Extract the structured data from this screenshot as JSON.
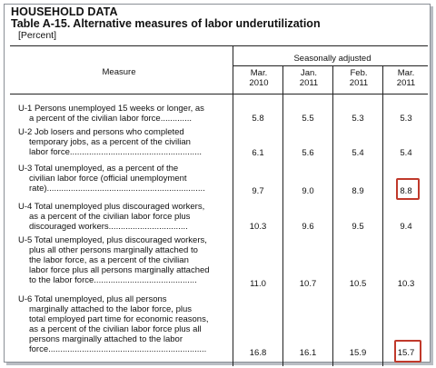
{
  "header": {
    "category": "HOUSEHOLD DATA",
    "title": "Table A-15. Alternative measures of labor underutilization",
    "unit": "[Percent]"
  },
  "table": {
    "group_header": "Seasonally adjusted",
    "measure_header": "Measure",
    "columns": [
      {
        "month": "Mar.",
        "year": "2010"
      },
      {
        "month": "Jan.",
        "year": "2011"
      },
      {
        "month": "Feb.",
        "year": "2011"
      },
      {
        "month": "Mar.",
        "year": "2011"
      }
    ],
    "rows": [
      {
        "lines": [
          "U-1 Persons unemployed 15 weeks or longer, as",
          "a percent of the civilian labor force............."
        ],
        "values": [
          "5.8",
          "5.5",
          "5.3",
          "5.3"
        ]
      },
      {
        "lines": [
          "U-2 Job losers and persons who completed",
          "temporary jobs, as a percent of the civilian",
          "labor force......................................................."
        ],
        "values": [
          "6.1",
          "5.6",
          "5.4",
          "5.4"
        ]
      },
      {
        "lines": [
          "U-3 Total unemployed, as a percent of the",
          "civilian labor force (official unemployment",
          "rate).................................................................."
        ],
        "values": [
          "9.7",
          "9.0",
          "8.9",
          "8.8"
        ],
        "highlight_col": 3
      },
      {
        "lines": [
          "U-4 Total unemployed plus discouraged workers,",
          "as a percent of the civilian labor force plus",
          "discouraged workers................................."
        ],
        "values": [
          "10.3",
          "9.6",
          "9.5",
          "9.4"
        ]
      },
      {
        "lines": [
          "U-5 Total unemployed, plus discouraged workers,",
          "plus all other persons marginally attached to",
          "the labor force, as a percent of the civilian",
          "labor force plus all persons marginally attached",
          "to the labor force..........................................."
        ],
        "values": [
          "11.0",
          "10.7",
          "10.5",
          "10.3"
        ]
      },
      {
        "lines": [
          "U-6 Total unemployed, plus all persons",
          "marginally attached to the labor force, plus",
          "total employed part time for economic reasons,",
          "as a percent of the civilian labor force plus all",
          "persons marginally attached to the labor",
          "force.................................................................."
        ],
        "values": [
          "16.8",
          "16.1",
          "15.9",
          "15.7"
        ],
        "highlight_col": 3
      }
    ]
  },
  "colors": {
    "highlight": "#c0392b",
    "frame": "#8a8f96"
  }
}
